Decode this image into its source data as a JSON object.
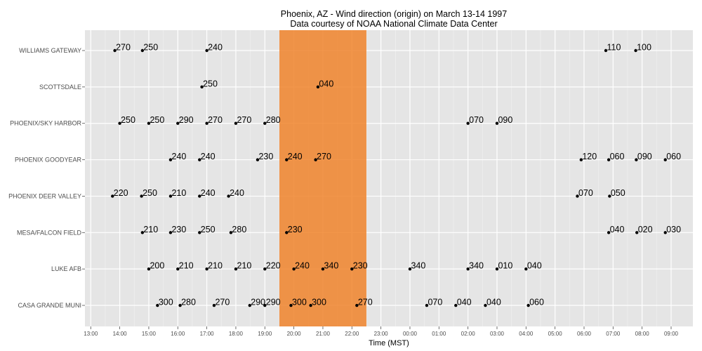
{
  "chart_data": {
    "type": "scatter",
    "title": "Phoenix, AZ - Wind direction (origin) on March 13-14 1997",
    "subtitle": "Data courtesy of NOAA National Climate Data Center",
    "xlabel": "Time (MST)",
    "ylabel": "",
    "xlim": [
      12.8,
      33.75
    ],
    "x_ticks": [
      {
        "value": 13,
        "label": "13:00"
      },
      {
        "value": 14,
        "label": "14:00"
      },
      {
        "value": 15,
        "label": "15:00"
      },
      {
        "value": 16,
        "label": "16:00"
      },
      {
        "value": 17,
        "label": "17:00"
      },
      {
        "value": 18,
        "label": "18:00"
      },
      {
        "value": 19,
        "label": "19:00"
      },
      {
        "value": 20,
        "label": "20:00"
      },
      {
        "value": 21,
        "label": "21:00"
      },
      {
        "value": 22,
        "label": "22:00"
      },
      {
        "value": 23,
        "label": "23:00"
      },
      {
        "value": 24,
        "label": "00:00"
      },
      {
        "value": 25,
        "label": "01:00"
      },
      {
        "value": 26,
        "label": "02:00"
      },
      {
        "value": 27,
        "label": "03:00"
      },
      {
        "value": 28,
        "label": "04:00"
      },
      {
        "value": 29,
        "label": "05:00"
      },
      {
        "value": 30,
        "label": "06:00"
      },
      {
        "value": 31,
        "label": "07:00"
      },
      {
        "value": 32,
        "label": "08:00"
      },
      {
        "value": 33,
        "label": "09:00"
      }
    ],
    "highlight_band": {
      "from": 19.5,
      "to": 22.5,
      "color": "#f0842c"
    },
    "grid": true,
    "colors": {
      "panel": "#e5e5e5",
      "grid": "#ffffff",
      "point": "#000000"
    },
    "categories": [
      "WILLIAMS GATEWAY",
      "SCOTTSDALE",
      "PHOENIX/SKY HARBOR",
      "PHOENIX GOODYEAR",
      "PHOENIX DEER VALLEY",
      "MESA/FALCON FIELD",
      "LUKE AFB",
      "CASA GRANDE MUNI"
    ],
    "series": [
      {
        "station": "WILLIAMS GATEWAY",
        "points": [
          {
            "x": 13.83,
            "label": "270"
          },
          {
            "x": 14.78,
            "label": "250"
          },
          {
            "x": 17.0,
            "label": "240"
          },
          {
            "x": 30.75,
            "label": "110"
          },
          {
            "x": 31.78,
            "label": "100"
          }
        ]
      },
      {
        "station": "SCOTTSDALE",
        "points": [
          {
            "x": 16.83,
            "label": "250"
          },
          {
            "x": 20.83,
            "label": "040"
          }
        ]
      },
      {
        "station": "PHOENIX/SKY HARBOR",
        "points": [
          {
            "x": 14.0,
            "label": "250"
          },
          {
            "x": 15.0,
            "label": "250"
          },
          {
            "x": 16.0,
            "label": "290"
          },
          {
            "x": 17.0,
            "label": "270"
          },
          {
            "x": 18.0,
            "label": "270"
          },
          {
            "x": 19.0,
            "label": "280"
          },
          {
            "x": 26.0,
            "label": "070"
          },
          {
            "x": 27.0,
            "label": "090"
          }
        ]
      },
      {
        "station": "PHOENIX GOODYEAR",
        "points": [
          {
            "x": 15.75,
            "label": "240"
          },
          {
            "x": 16.75,
            "label": "240"
          },
          {
            "x": 18.75,
            "label": "230"
          },
          {
            "x": 19.75,
            "label": "240"
          },
          {
            "x": 20.75,
            "label": "270"
          },
          {
            "x": 29.9,
            "label": "120"
          },
          {
            "x": 30.85,
            "label": "060"
          },
          {
            "x": 31.8,
            "label": "090"
          },
          {
            "x": 32.8,
            "label": "060"
          }
        ]
      },
      {
        "station": "PHOENIX DEER VALLEY",
        "points": [
          {
            "x": 13.75,
            "label": "220"
          },
          {
            "x": 14.75,
            "label": "250"
          },
          {
            "x": 15.75,
            "label": "210"
          },
          {
            "x": 16.75,
            "label": "240"
          },
          {
            "x": 17.75,
            "label": "240"
          },
          {
            "x": 29.77,
            "label": "070"
          },
          {
            "x": 30.88,
            "label": "050"
          }
        ]
      },
      {
        "station": "MESA/FALCON FIELD",
        "points": [
          {
            "x": 14.78,
            "label": "210"
          },
          {
            "x": 15.75,
            "label": "230"
          },
          {
            "x": 16.75,
            "label": "250"
          },
          {
            "x": 17.83,
            "label": "280"
          },
          {
            "x": 19.75,
            "label": "230"
          },
          {
            "x": 30.85,
            "label": "040"
          },
          {
            "x": 31.82,
            "label": "020"
          },
          {
            "x": 32.8,
            "label": "030"
          }
        ]
      },
      {
        "station": "LUKE AFB",
        "points": [
          {
            "x": 15.0,
            "label": "200"
          },
          {
            "x": 16.0,
            "label": "210"
          },
          {
            "x": 17.0,
            "label": "210"
          },
          {
            "x": 18.0,
            "label": "210"
          },
          {
            "x": 19.0,
            "label": "220"
          },
          {
            "x": 20.0,
            "label": "240"
          },
          {
            "x": 21.0,
            "label": "340"
          },
          {
            "x": 22.0,
            "label": "230"
          },
          {
            "x": 24.0,
            "label": "340"
          },
          {
            "x": 26.0,
            "label": "340"
          },
          {
            "x": 27.0,
            "label": "010"
          },
          {
            "x": 28.0,
            "label": "040"
          }
        ]
      },
      {
        "station": "CASA GRANDE MUNI",
        "points": [
          {
            "x": 15.3,
            "label": "300"
          },
          {
            "x": 16.08,
            "label": "280"
          },
          {
            "x": 17.25,
            "label": "270"
          },
          {
            "x": 18.48,
            "label": "290"
          },
          {
            "x": 19.0,
            "label": "290"
          },
          {
            "x": 19.9,
            "label": "300"
          },
          {
            "x": 20.58,
            "label": "300"
          },
          {
            "x": 22.17,
            "label": "270"
          },
          {
            "x": 24.58,
            "label": "070"
          },
          {
            "x": 25.58,
            "label": "040"
          },
          {
            "x": 26.6,
            "label": "040"
          },
          {
            "x": 28.08,
            "label": "060"
          }
        ]
      }
    ]
  }
}
